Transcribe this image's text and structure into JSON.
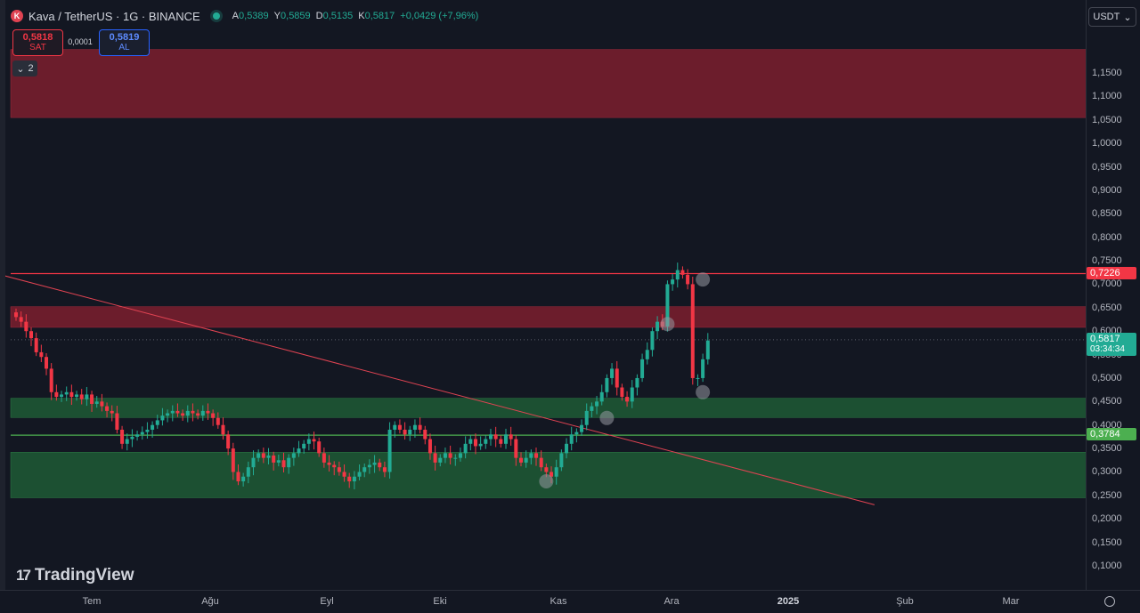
{
  "header": {
    "symbol_icon": "kava-logo-icon",
    "symbol_title": "Kava / TetherUS · 1G · BINANCE",
    "ohlc": [
      {
        "k": "A",
        "v": "0,5389"
      },
      {
        "k": "Y",
        "v": "0,5859"
      },
      {
        "k": "D",
        "v": "0,5135"
      },
      {
        "k": "K",
        "v": "0,5817"
      },
      {
        "k": "",
        "v": "+0,0429 (+7,96%)"
      }
    ]
  },
  "trade": {
    "sell_price": "0,5818",
    "sell_label": "SAT",
    "spread": "0,0001",
    "buy_price": "0,5819",
    "buy_label": "AL"
  },
  "indicators_count": "2",
  "currency": "USDT",
  "watermark": "TradingView",
  "colors": {
    "background": "#131722",
    "up": "#22ab94",
    "down": "#f23645",
    "resistance_zone": "#7c1f2e",
    "support_zone": "#1e5a35"
  },
  "chart_data": {
    "type": "candlestick",
    "ylim": [
      0.05,
      1.2
    ],
    "y_ticks": [
      "1,1500",
      "1,1000",
      "1,0500",
      "1,0000",
      "0,9500",
      "0,9000",
      "0,8500",
      "0,8000",
      "0,7500",
      "0,7000",
      "0,6500",
      "0,6000",
      "0,5500",
      "0,5000",
      "0,4500",
      "0,4000",
      "0,3500",
      "0,3000",
      "0,2500",
      "0,2000",
      "0,1500",
      "0,1000"
    ],
    "y_tick_values": [
      1.15,
      1.1,
      1.05,
      1.0,
      0.95,
      0.9,
      0.85,
      0.8,
      0.75,
      0.7,
      0.65,
      0.6,
      0.55,
      0.5,
      0.45,
      0.4,
      0.35,
      0.3,
      0.25,
      0.2,
      0.15,
      0.1
    ],
    "x_labels": [
      "Tem",
      "Ağu",
      "Eyl",
      "Eki",
      "Kas",
      "Ara",
      "2025",
      "Şub",
      "Mar"
    ],
    "horizontal_lines": [
      {
        "value": 0.7226,
        "label": "0,7226",
        "color": "#f23645"
      },
      {
        "value": 0.3784,
        "label": "0,3784",
        "color": "#4caf50"
      }
    ],
    "current_price": {
      "value": 0.5817,
      "label": "0,5817",
      "countdown": "03:34:34"
    },
    "zones": [
      {
        "from": 1.055,
        "to": 1.2,
        "kind": "resistance"
      },
      {
        "from": 0.608,
        "to": 0.652,
        "kind": "resistance"
      },
      {
        "from": 0.416,
        "to": 0.457,
        "kind": "support"
      },
      {
        "from": 0.245,
        "to": 0.342,
        "kind": "support"
      }
    ],
    "trendline": [
      {
        "day": -3,
        "price": 0.72
      },
      {
        "day": 170,
        "price": 0.23
      }
    ],
    "markers": [
      {
        "day": 105,
        "price": 0.28
      },
      {
        "day": 117,
        "price": 0.415
      },
      {
        "day": 129,
        "price": 0.615
      },
      {
        "day": 136,
        "price": 0.71
      },
      {
        "day": 136,
        "price": 0.47
      }
    ],
    "start_day": 0,
    "closes": [
      0.63,
      0.62,
      0.6,
      0.585,
      0.555,
      0.545,
      0.52,
      0.47,
      0.46,
      0.465,
      0.47,
      0.46,
      0.465,
      0.455,
      0.465,
      0.445,
      0.45,
      0.44,
      0.43,
      0.425,
      0.39,
      0.36,
      0.37,
      0.375,
      0.38,
      0.385,
      0.39,
      0.4,
      0.41,
      0.42,
      0.425,
      0.43,
      0.425,
      0.42,
      0.43,
      0.425,
      0.42,
      0.43,
      0.425,
      0.415,
      0.4,
      0.38,
      0.35,
      0.3,
      0.28,
      0.29,
      0.31,
      0.33,
      0.34,
      0.33,
      0.335,
      0.32,
      0.325,
      0.31,
      0.33,
      0.34,
      0.35,
      0.36,
      0.37,
      0.365,
      0.34,
      0.32,
      0.315,
      0.31,
      0.3,
      0.29,
      0.28,
      0.29,
      0.3,
      0.31,
      0.315,
      0.32,
      0.31,
      0.3,
      0.39,
      0.4,
      0.39,
      0.38,
      0.39,
      0.4,
      0.39,
      0.37,
      0.34,
      0.32,
      0.33,
      0.34,
      0.33,
      0.33,
      0.34,
      0.36,
      0.37,
      0.355,
      0.36,
      0.37,
      0.38,
      0.37,
      0.36,
      0.38,
      0.37,
      0.33,
      0.32,
      0.33,
      0.34,
      0.33,
      0.31,
      0.3,
      0.29,
      0.31,
      0.34,
      0.36,
      0.38,
      0.385,
      0.4,
      0.43,
      0.44,
      0.45,
      0.47,
      0.5,
      0.52,
      0.48,
      0.46,
      0.45,
      0.48,
      0.5,
      0.54,
      0.56,
      0.6,
      0.62,
      0.61,
      0.7,
      0.71,
      0.73,
      0.72,
      0.7,
      0.5,
      0.5,
      0.54,
      0.58
    ]
  }
}
